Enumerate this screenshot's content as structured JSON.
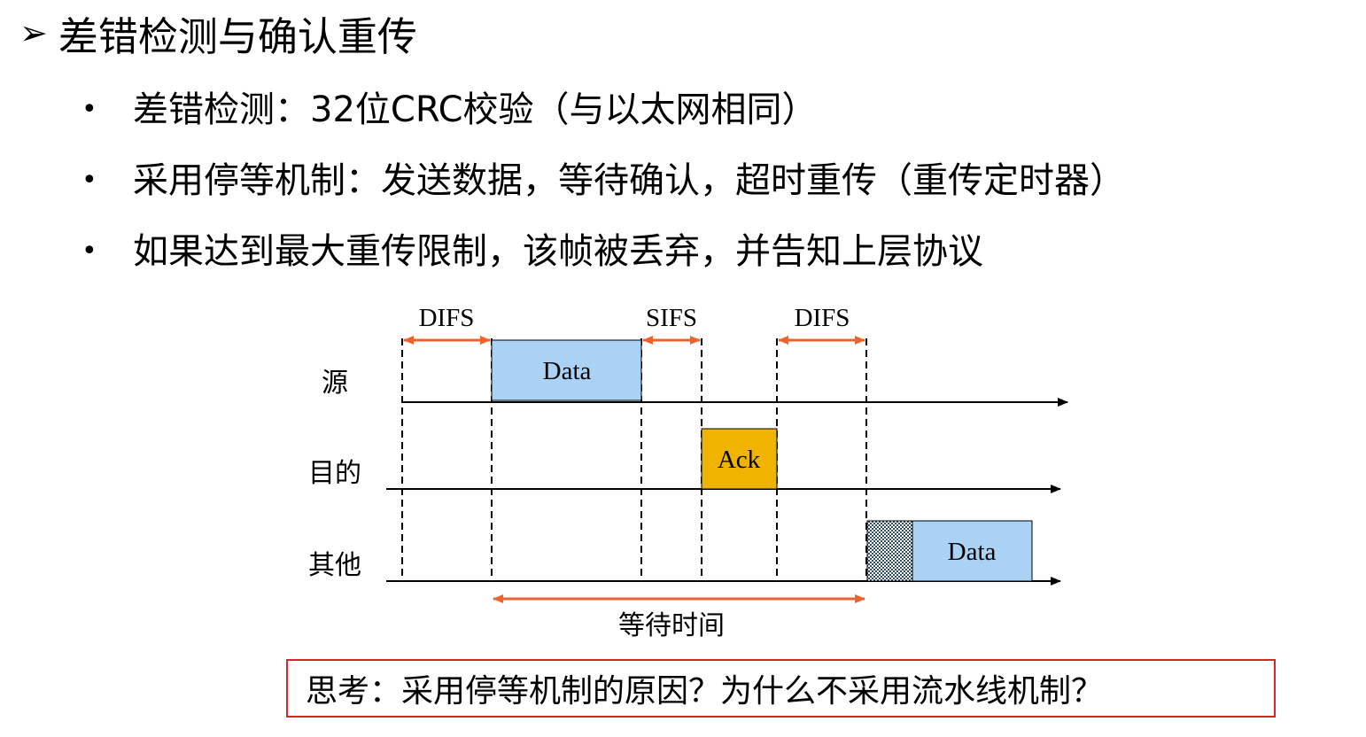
{
  "heading": {
    "marker": "➢",
    "text": "差错检测与确认重传"
  },
  "bullets": [
    {
      "marker": "•",
      "text": "差错检测：32位CRC校验（与以太网相同）"
    },
    {
      "marker": "•",
      "text": "采用停等机制：发送数据，等待确认，超时重传（重传定时器）"
    },
    {
      "marker": "•",
      "text": "如果达到最大重传限制，该帧被丢弃，并告知上层协议"
    }
  ],
  "diagram": {
    "rows": {
      "source": "源",
      "destination": "目的",
      "others": "其他"
    },
    "intervals": {
      "difs_1": "DIFS",
      "sifs": "SIFS",
      "difs_2": "DIFS"
    },
    "frames": {
      "source_data": "Data",
      "ack": "Ack",
      "others_data": "Data"
    },
    "wait_label": "等待时间",
    "colors": {
      "data_fill": "#a9d2f5",
      "ack_fill": "#f0b400",
      "arrow": "#f0622d",
      "box_border": "#d9262b"
    }
  },
  "question": "思考：采用停等机制的原因？为什么不采用流水线机制？"
}
